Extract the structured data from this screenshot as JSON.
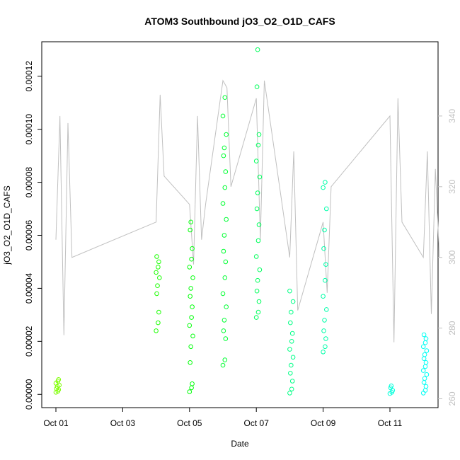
{
  "chart_data": {
    "type": "scatter",
    "title": "ATOM3 Southbound jO3_O2_O1D_CAFS",
    "xlabel": "Date",
    "ylabel": "jO3_O2_O1D_CAFS",
    "xlim": [
      "2016-10-01",
      "2016-12-01"
    ],
    "ylim": [
      -5e-06,
      0.000133
    ],
    "y2lim": [
      257.5,
      361
    ],
    "x_ticks": [
      {
        "value": "2016-10-01",
        "label": "Oct 01"
      },
      {
        "value": "2016-10-03",
        "label": "Oct 03"
      },
      {
        "value": "2016-10-05",
        "label": "Oct 05"
      },
      {
        "value": "2016-10-07",
        "label": "Oct 07"
      },
      {
        "value": "2016-10-09",
        "label": "Oct 09"
      },
      {
        "value": "2016-10-11",
        "label": "Oct 11"
      }
    ],
    "y_ticks": [
      {
        "value": 0.0,
        "label": "0.00000"
      },
      {
        "value": 2e-05,
        "label": "0.00002"
      },
      {
        "value": 4e-05,
        "label": "0.00004"
      },
      {
        "value": 6e-05,
        "label": "0.00006"
      },
      {
        "value": 8e-05,
        "label": "0.00008"
      },
      {
        "value": 0.0001,
        "label": "0.00010"
      },
      {
        "value": 0.00012,
        "label": "0.00012"
      }
    ],
    "y2_ticks": [
      {
        "value": 260,
        "label": "260"
      },
      {
        "value": 280,
        "label": "280"
      },
      {
        "value": 300,
        "label": "300"
      },
      {
        "value": 320,
        "label": "320"
      },
      {
        "value": 340,
        "label": "340"
      }
    ],
    "grid": false,
    "legend": "none",
    "colors": {
      "secondary_line": "#c0c0c0",
      "scatter_gradient": [
        "#7fff00",
        "#00ff00",
        "#00ffa0",
        "#00ffff"
      ]
    },
    "series": [
      {
        "type": "line",
        "axis": "right",
        "points": [
          [
            "2016-10-01",
            305
          ],
          [
            "2016-10-01",
            340
          ],
          [
            "2016-10-01",
            278
          ],
          [
            "2016-10-01",
            338
          ],
          [
            "2016-10-01",
            300
          ],
          [
            "2016-10-04",
            310
          ],
          [
            "2016-10-04",
            346
          ],
          [
            "2016-10-04",
            323
          ],
          [
            "2016-10-05",
            315
          ],
          [
            "2016-10-05",
            298
          ],
          [
            "2016-10-05",
            340
          ],
          [
            "2016-10-05",
            305
          ],
          [
            "2016-10-05",
            315
          ],
          [
            "2016-10-06",
            350
          ],
          [
            "2016-10-06",
            348
          ],
          [
            "2016-10-06",
            320
          ],
          [
            "2016-10-07",
            345
          ],
          [
            "2016-10-07",
            305
          ],
          [
            "2016-10-07",
            350
          ],
          [
            "2016-10-08",
            300
          ],
          [
            "2016-10-08",
            330
          ],
          [
            "2016-10-08",
            285
          ],
          [
            "2016-10-09",
            310
          ],
          [
            "2016-10-09",
            290
          ],
          [
            "2016-10-09",
            320
          ],
          [
            "2016-10-11",
            340
          ],
          [
            "2016-10-11",
            276
          ],
          [
            "2016-10-11",
            345
          ],
          [
            "2016-10-11",
            310
          ],
          [
            "2016-10-12",
            300
          ],
          [
            "2016-10-12",
            330
          ],
          [
            "2016-10-12",
            284
          ],
          [
            "2016-10-12",
            325
          ],
          [
            "2016-10-12",
            300
          ]
        ]
      },
      {
        "type": "scatter",
        "axis": "left",
        "groups": [
          {
            "x": "2016-10-01",
            "y": [
              8e-07,
              1.2e-06,
              1.8e-06,
              2.2e-06,
              3e-06,
              3.5e-06,
              4.2e-06,
              5e-06,
              5.6e-06
            ]
          },
          {
            "x": "2016-10-04",
            "y": [
              2.4e-05,
              2.7e-05,
              3.1e-05,
              3.8e-05,
              4.1e-05,
              4.4e-05,
              4.6e-05,
              4.8e-05,
              5e-05,
              5.2e-05
            ]
          },
          {
            "x": "2016-10-05",
            "y": [
              1e-06,
              2.5e-06,
              4e-06,
              1.2e-05,
              1.8e-05,
              2.2e-05,
              2.6e-05,
              2.9e-05,
              3.3e-05,
              3.7e-05,
              4e-05,
              4.4e-05,
              4.8e-05,
              5.1e-05,
              5.5e-05,
              6.2e-05,
              6.5e-05
            ]
          },
          {
            "x": "2016-10-06",
            "y": [
              1.1e-05,
              1.3e-05,
              2.1e-05,
              2.4e-05,
              2.8e-05,
              3.3e-05,
              3.8e-05,
              4.4e-05,
              5e-05,
              5.4e-05,
              6e-05,
              6.6e-05,
              7.2e-05,
              7.8e-05,
              8.4e-05,
              9e-05,
              9.3e-05,
              9.8e-05,
              0.000105,
              0.000112
            ]
          },
          {
            "x": "2016-10-07",
            "y": [
              2.9e-05,
              3.1e-05,
              3.5e-05,
              3.9e-05,
              4.3e-05,
              4.7e-05,
              5.2e-05,
              5.8e-05,
              6.4e-05,
              7e-05,
              7.6e-05,
              8.2e-05,
              8.8e-05,
              9.4e-05,
              9.8e-05,
              0.000116,
              0.00013
            ]
          },
          {
            "x": "2016-10-08",
            "y": [
              5e-07,
              2e-06,
              5e-06,
              8e-06,
              1.1e-05,
              1.4e-05,
              1.7e-05,
              2e-05,
              2.3e-05,
              2.7e-05,
              3.1e-05,
              3.5e-05,
              3.9e-05
            ]
          },
          {
            "x": "2016-10-09",
            "y": [
              1.6e-05,
              1.8e-05,
              2.1e-05,
              2.4e-05,
              2.8e-05,
              3.2e-05,
              3.7e-05,
              4.3e-05,
              4.9e-05,
              5.5e-05,
              6.2e-05,
              7e-05,
              7.8e-05,
              8e-05
            ]
          },
          {
            "x": "2016-10-11",
            "y": [
              3e-07,
              8e-07,
              1.5e-06,
              2.5e-06,
              3.2e-06
            ]
          },
          {
            "x": "2016-10-12",
            "y": [
              5e-07,
              1.5e-06,
              3e-06,
              4.5e-06,
              6e-06,
              7.5e-06,
              9e-06,
              1.05e-05,
              1.2e-05,
              1.35e-05,
              1.5e-05,
              1.65e-05,
              1.8e-05,
              1.95e-05,
              2.1e-05,
              2.25e-05
            ]
          }
        ]
      }
    ]
  }
}
